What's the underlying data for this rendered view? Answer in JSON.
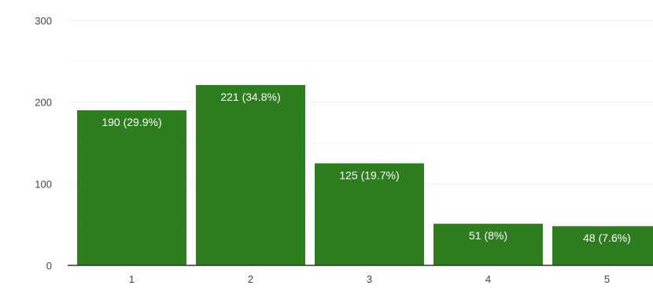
{
  "chart_data": {
    "type": "bar",
    "categories": [
      "1",
      "2",
      "3",
      "4",
      "5"
    ],
    "values": [
      190,
      221,
      125,
      51,
      48
    ],
    "data_labels": [
      "190 (29.9%)",
      "221 (34.8%)",
      "125 (19.7%)",
      "51 (8%)",
      "48 (7.6%)"
    ],
    "y_ticks": [
      "0",
      "100",
      "200",
      "300"
    ],
    "y_tick_values": [
      0,
      100,
      200,
      300
    ],
    "ylim": [
      0,
      300
    ],
    "title": "",
    "xlabel": "",
    "ylabel": "",
    "grid": true,
    "legend": "none",
    "bar_color": "#2e7d1f",
    "grid_color": "#eeeeee",
    "axis_color": "#333333",
    "label_color": "#ffffff"
  }
}
